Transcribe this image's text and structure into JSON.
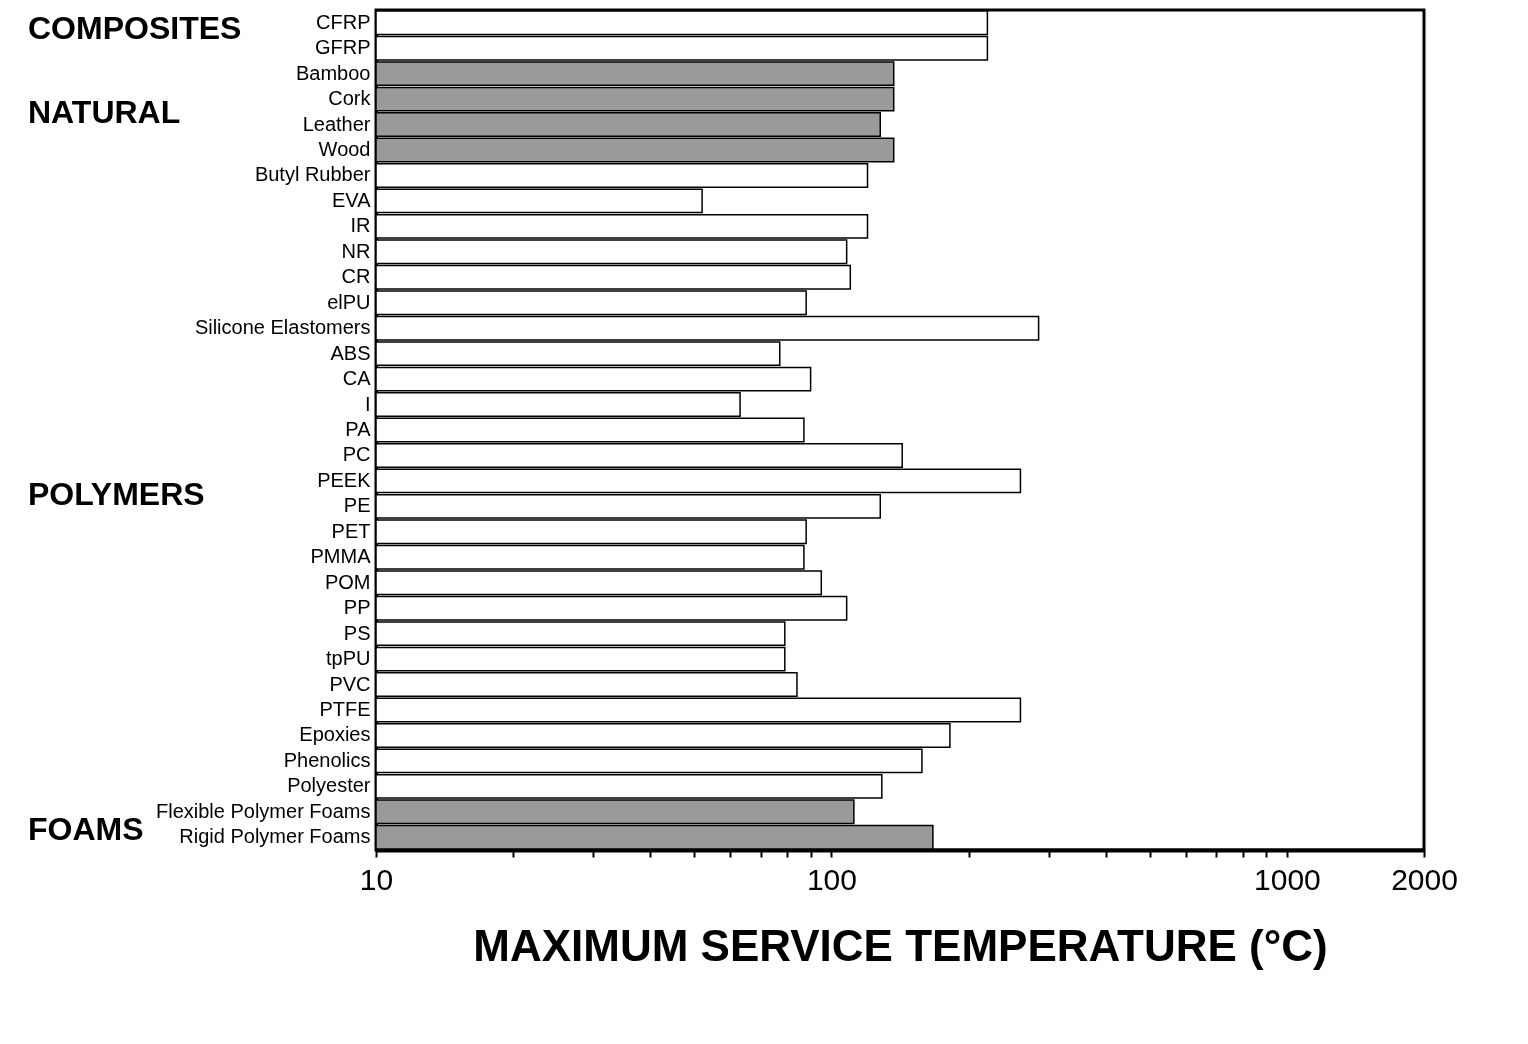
{
  "chart_data": {
    "type": "bar",
    "orientation": "horizontal",
    "log": "x",
    "xlabel": "MAXIMUM SERVICE TEMPERATURE (°C)",
    "categories": [
      "CFRP",
      "GFRP",
      "Bamboo",
      "Cork",
      "Leather",
      "Wood",
      "Butyl Rubber",
      "EVA",
      "IR",
      "NR",
      "CR",
      "elPU",
      "Silicone Elastomers",
      "ABS",
      "CA",
      "I",
      "PA",
      "PC",
      "PEEK",
      "PE",
      "PET",
      "PMMA",
      "POM",
      "PP",
      "PS",
      "tpPU",
      "PVC",
      "PTFE",
      "Epoxies",
      "Phenolics",
      "Polyester",
      "Flexible Polymer Foams",
      "Rigid Polymer Foams"
    ],
    "values": [
      220,
      220,
      137,
      137,
      128,
      137,
      120,
      52,
      120,
      108,
      110,
      88,
      285,
      77,
      90,
      63,
      87,
      143,
      260,
      128,
      88,
      87,
      95,
      108,
      79,
      79,
      84,
      260,
      182,
      158,
      129,
      112,
      167
    ],
    "colors": [
      "#ffffff",
      "#ffffff",
      "#9a9a9a",
      "#9a9a9a",
      "#9a9a9a",
      "#9a9a9a",
      "#ffffff",
      "#ffffff",
      "#ffffff",
      "#ffffff",
      "#ffffff",
      "#ffffff",
      "#ffffff",
      "#ffffff",
      "#ffffff",
      "#ffffff",
      "#ffffff",
      "#ffffff",
      "#ffffff",
      "#ffffff",
      "#ffffff",
      "#ffffff",
      "#ffffff",
      "#ffffff",
      "#ffffff",
      "#ffffff",
      "#ffffff",
      "#ffffff",
      "#ffffff",
      "#ffffff",
      "#ffffff",
      "#9a9a9a",
      "#9a9a9a"
    ],
    "xlim": [
      10,
      2000
    ],
    "xticks": [
      10,
      {
        "value": 20,
        "label": null
      },
      {
        "value": 30,
        "label": null
      },
      {
        "value": 40,
        "label": null
      },
      {
        "value": 50,
        "label": null
      },
      {
        "value": 60,
        "label": null
      },
      {
        "value": 70,
        "label": null
      },
      {
        "value": 80,
        "label": null
      },
      {
        "value": 90,
        "label": null
      },
      100,
      {
        "value": 200,
        "label": null
      },
      {
        "value": 300,
        "label": null
      },
      {
        "value": 400,
        "label": null
      },
      {
        "value": 500,
        "label": null
      },
      {
        "value": 600,
        "label": null
      },
      {
        "value": 700,
        "label": null
      },
      {
        "value": 800,
        "label": null
      },
      {
        "value": 900,
        "label": null
      },
      1000,
      2000
    ],
    "annotations": [
      "COMPOSITES",
      "NATURAL",
      "POLYMERS",
      "FOAMS"
    ]
  }
}
